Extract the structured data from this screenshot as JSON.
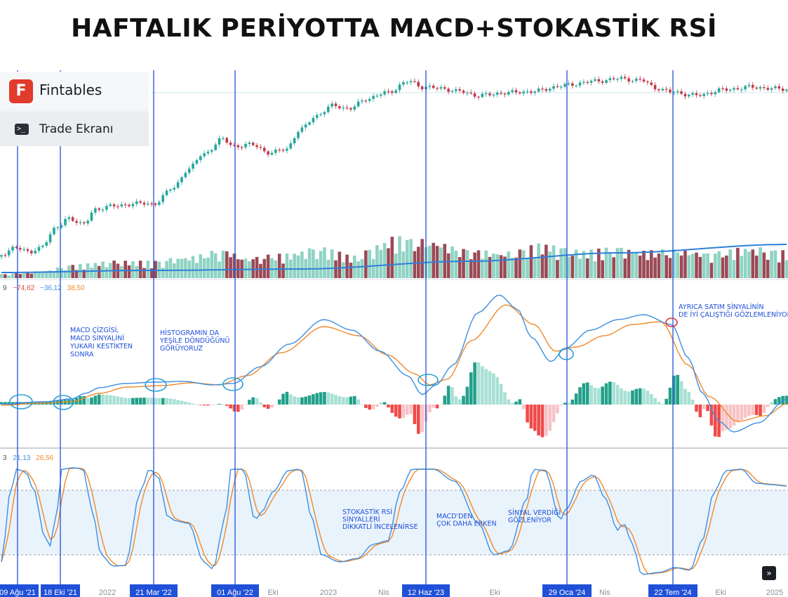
{
  "title": "HAFTALIK PERİYOTTA MACD+STOKASTİK RSİ",
  "brand": {
    "name": "Fintables",
    "logo_letter": "F",
    "sub_label": "Trade Ekranı",
    "term_glyph": ">_"
  },
  "colors": {
    "up": "#26a69a",
    "down": "#c23a4a",
    "vol_up": "#8fd3c4",
    "vol_down": "#9a4a55",
    "ma": "#2f7fd8",
    "macd": "#3d8fe0",
    "signal": "#f0892b",
    "hist_up_strong": "#22a08a",
    "hist_up_weak": "#a8e0d4",
    "hist_down_strong": "#f04a4a",
    "hist_down_weak": "#f7c3c6",
    "stoch_k": "#3d8fe0",
    "stoch_d": "#f0892b",
    "stoch_band": "#e9f3fb",
    "marker_line": "#2050d8",
    "ellipse": "#2aa0d8",
    "ellipse_red": "#e03040"
  },
  "macd_legend": {
    "prefix": "9",
    "macd": "−74,62",
    "signal": "−36,12",
    "hist": "38,50"
  },
  "stoch_legend": {
    "prefix": "3",
    "k": "21,13",
    "d": "26,56"
  },
  "x_axis": {
    "ticks": [
      "2022",
      "Eki",
      "2023",
      "Nis",
      "Eki",
      "Nis",
      "Eki",
      "2025"
    ],
    "highlighted": [
      "09 Ağu '21",
      "18 Eki '21",
      "21 Mar '22",
      "01 Ağu '22",
      "12 Haz '23",
      "29 Oca '24",
      "22 Tem '24"
    ]
  },
  "annotations": [
    {
      "lines": [
        "MACD ÇİZGİSİ,",
        "MACD SİNYALİNİ",
        "YUKARI KESTİKTEN",
        "SONRA"
      ]
    },
    {
      "lines": [
        "HİSTOGRAMIN  DA",
        "YEŞİLE DÖNDÜĞÜNÜ",
        " GÖRÜYORUZ"
      ]
    },
    {
      "lines": [
        "AYRICA SATIM SİNYALİNİN",
        "DE İYİ ÇALIŞTIĞI GÖZLEMLENİYOR"
      ]
    },
    {
      "lines": [
        "STOKASTİK RSİ",
        "SİNYALLERİ",
        "DİKKATLİ İNCELENİRSE"
      ]
    },
    {
      "lines": [
        "MACD'DEN",
        "ÇOK DAHA ERKEN"
      ]
    },
    {
      "lines": [
        "SİNYAL VERDİĞİ",
        "GÖZLENİYOR"
      ]
    }
  ],
  "nav_glyph": "»",
  "chart_data": {
    "type": "line",
    "price_trend": {
      "x": [
        "09 Ağu '21",
        "18 Eki '21",
        "21 Mar '22",
        "01 Ağu '22",
        "2023",
        "12 Haz '23",
        "29 Oca '24",
        "22 Tem '24",
        "2025"
      ],
      "y": [
        0.08,
        0.12,
        0.33,
        0.42,
        0.8,
        0.78,
        0.94,
        1.0,
        0.96
      ]
    },
    "macd_signal_crosses": [
      "09 Ağu '21",
      "18 Eki '21",
      "21 Mar '22",
      "01 Ağu '22",
      "12 Haz '23",
      "29 Oca '24",
      "22 Tem '24"
    ],
    "stoch_rsi": {
      "overbought": 80,
      "oversold": 20
    }
  }
}
